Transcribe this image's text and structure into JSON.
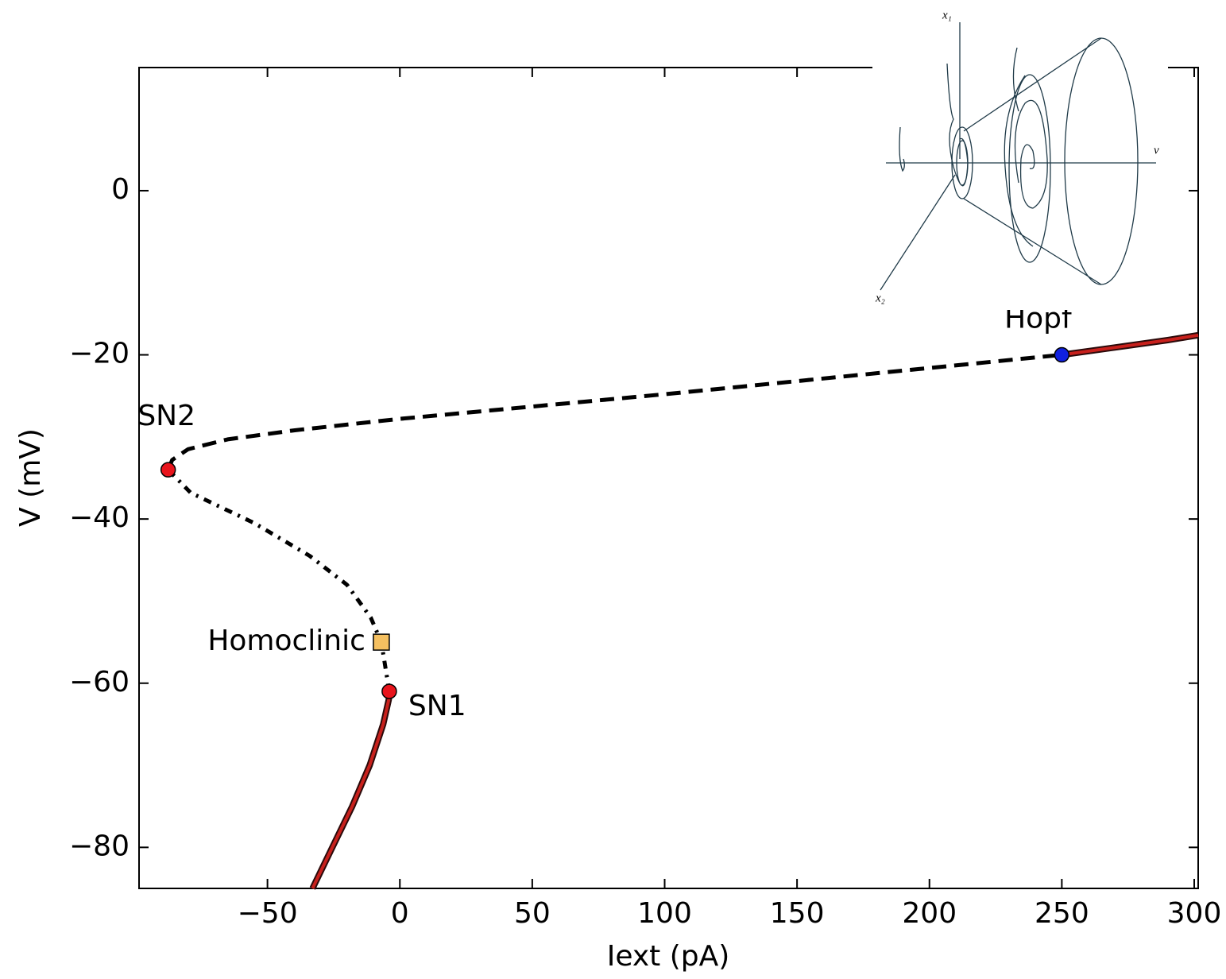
{
  "chart_data": {
    "type": "line",
    "x_label": "Iext (pA)",
    "y_label": "V (mV)",
    "xlim": [
      -98.5,
      301.5
    ],
    "ylim": [
      -85,
      15
    ],
    "xticks": [
      {
        "value": -50,
        "label": "−50"
      },
      0,
      50,
      100,
      150,
      200,
      250,
      300
    ],
    "yticks": [
      {
        "value": -80,
        "label": "−80"
      },
      {
        "value": -60,
        "label": "−60"
      },
      {
        "value": -40,
        "label": "−40"
      },
      {
        "value": -20,
        "label": "−20"
      },
      0
    ],
    "series": [
      {
        "style": "solid",
        "color": "#c8201c",
        "x": [
          -33,
          -25.5,
          -18,
          -11.4,
          -6.3,
          -4.2,
          -4
        ],
        "values": [
          -85,
          -80,
          -75,
          -70,
          -65,
          -62,
          -61
        ]
      },
      {
        "style": "dashdot",
        "color": "#000000",
        "x": [
          -4,
          -6,
          -7,
          -11,
          -20,
          -34,
          -55,
          -79,
          -87.5
        ],
        "values": [
          -61,
          -57,
          -55,
          -52,
          -48,
          -44.5,
          -40.5,
          -36.8,
          -34
        ]
      },
      {
        "style": "dashed",
        "color": "#000000",
        "x": [
          -87.5,
          -86,
          -80,
          -65,
          -40,
          0,
          50,
          100,
          150,
          200,
          250
        ],
        "values": [
          -34,
          -32.8,
          -31.5,
          -30.3,
          -29.2,
          -27.8,
          -26.3,
          -24.8,
          -23.2,
          -21.6,
          -20
        ]
      },
      {
        "style": "solid",
        "color": "#c8201c",
        "x": [
          250,
          270,
          290,
          301.5
        ],
        "values": [
          -20,
          -19.1,
          -18.2,
          -17.6
        ]
      }
    ],
    "points": [
      {
        "label": "SN1",
        "x": -4,
        "y": -61,
        "color": "#e8141c",
        "marker": "circle"
      },
      {
        "label": "SN2",
        "x": -87.5,
        "y": -34,
        "color": "#e8141c",
        "marker": "circle"
      },
      {
        "label": "Homoclinic",
        "x": -7,
        "y": -55,
        "color": "#f5c060",
        "marker": "square"
      },
      {
        "label": "Hopf",
        "x": 250,
        "y": -20,
        "color": "#1020e0",
        "marker": "circle"
      }
    ],
    "inset": {
      "axis_labels": [
        "x₁",
        "x₂",
        "v"
      ]
    }
  }
}
